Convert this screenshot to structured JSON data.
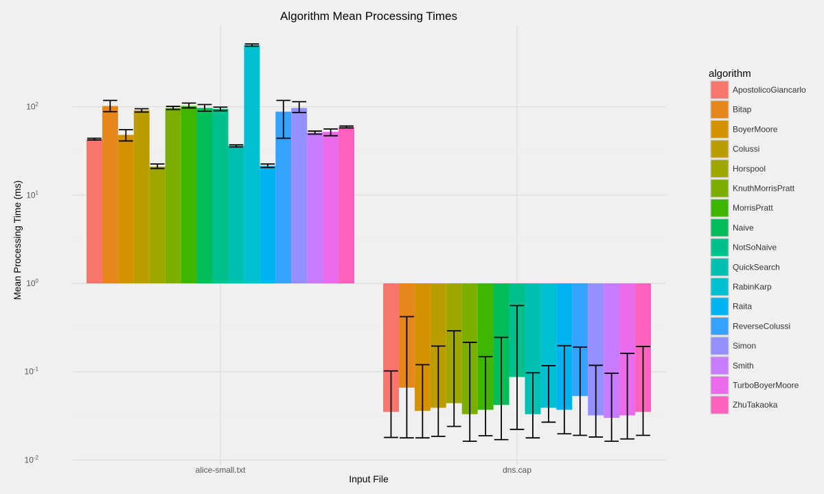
{
  "chart_data": {
    "type": "bar",
    "title": "Algorithm Mean Processing Times",
    "xlabel": "Input File",
    "ylabel": "Mean Processing Time (ms)",
    "y_scale": "log10",
    "y_baseline": 1,
    "ylim": [
      0.01,
      600
    ],
    "y_ticks": [
      {
        "value": 0.01,
        "base": "10",
        "exp": "-2"
      },
      {
        "value": 0.1,
        "base": "10",
        "exp": "-1"
      },
      {
        "value": 1,
        "base": "10",
        "exp": "0"
      },
      {
        "value": 10,
        "base": "10",
        "exp": "1"
      },
      {
        "value": 100,
        "base": "10",
        "exp": "2"
      }
    ],
    "grid": true,
    "legend_position": "right",
    "legend_title": "algorithm",
    "categories": [
      "alice-small.txt",
      "dns.cap"
    ],
    "series": [
      {
        "name": "ApostolicoGiancarlo",
        "color": "#F8766D",
        "values": [
          43,
          0.035
        ],
        "err_low": [
          42,
          0.018
        ],
        "err_high": [
          44,
          0.102
        ]
      },
      {
        "name": "Bitap",
        "color": "#E7861B",
        "values": [
          102,
          0.066
        ],
        "err_low": [
          88,
          0.0178
        ],
        "err_high": [
          118,
          0.42
        ]
      },
      {
        "name": "BoyerMoore",
        "color": "#D39200",
        "values": [
          48,
          0.036
        ],
        "err_low": [
          41,
          0.0178
        ],
        "err_high": [
          55,
          0.12
        ]
      },
      {
        "name": "Colussi",
        "color": "#BC9D00",
        "values": [
          91,
          0.039
        ],
        "err_low": [
          87,
          0.0185
        ],
        "err_high": [
          95,
          0.195
        ]
      },
      {
        "name": "Horspool",
        "color": "#A0A600",
        "values": [
          21,
          0.044
        ],
        "err_low": [
          20,
          0.024
        ],
        "err_high": [
          22.5,
          0.29
        ]
      },
      {
        "name": "KnuthMorrisPratt",
        "color": "#7CAE00",
        "values": [
          97,
          0.033
        ],
        "err_low": [
          93,
          0.0163
        ],
        "err_high": [
          101,
          0.215
        ]
      },
      {
        "name": "MorrisPratt",
        "color": "#3DB600",
        "values": [
          102,
          0.037
        ],
        "err_low": [
          97,
          0.0188
        ],
        "err_high": [
          110,
          0.148
        ]
      },
      {
        "name": "Naive",
        "color": "#00BC5A",
        "values": [
          97,
          0.042
        ],
        "err_low": [
          89,
          0.017
        ],
        "err_high": [
          106,
          0.245
        ]
      },
      {
        "name": "NotSoNaive",
        "color": "#00C08B",
        "values": [
          95,
          0.087
        ],
        "err_low": [
          90,
          0.0222
        ],
        "err_high": [
          99,
          0.56
        ]
      },
      {
        "name": "QuickSearch",
        "color": "#00C1B1",
        "values": [
          36,
          0.033
        ],
        "err_low": [
          35,
          0.0178
        ],
        "err_high": [
          37,
          0.097
        ]
      },
      {
        "name": "RabinKarp",
        "color": "#00BFD1",
        "values": [
          500,
          0.039
        ],
        "err_low": [
          485,
          0.0268
        ],
        "err_high": [
          515,
          0.117
        ]
      },
      {
        "name": "Raita",
        "color": "#00B4EF",
        "values": [
          21.5,
          0.037
        ],
        "err_low": [
          20.5,
          0.0198
        ],
        "err_high": [
          22.5,
          0.197
        ]
      },
      {
        "name": "ReverseColussi",
        "color": "#35A2FF",
        "values": [
          88,
          0.053
        ],
        "err_low": [
          44,
          0.019
        ],
        "err_high": [
          118,
          0.19
        ]
      },
      {
        "name": "Simon",
        "color": "#9590FF",
        "values": [
          97,
          0.032
        ],
        "err_low": [
          86,
          0.0182
        ],
        "err_high": [
          114,
          0.118
        ]
      },
      {
        "name": "Smith",
        "color": "#C77CFF",
        "values": [
          51,
          0.03
        ],
        "err_low": [
          49,
          0.0163
        ],
        "err_high": [
          53,
          0.096
        ]
      },
      {
        "name": "TurboBoyerMoore",
        "color": "#EA6AEC",
        "values": [
          52,
          0.032
        ],
        "err_low": [
          47,
          0.0173
        ],
        "err_high": [
          56,
          0.161
        ]
      },
      {
        "name": "ZhuTakaoka",
        "color": "#FF62BC",
        "values": [
          59,
          0.035
        ],
        "err_low": [
          57.5,
          0.019
        ],
        "err_high": [
          60.5,
          0.193
        ]
      }
    ]
  }
}
